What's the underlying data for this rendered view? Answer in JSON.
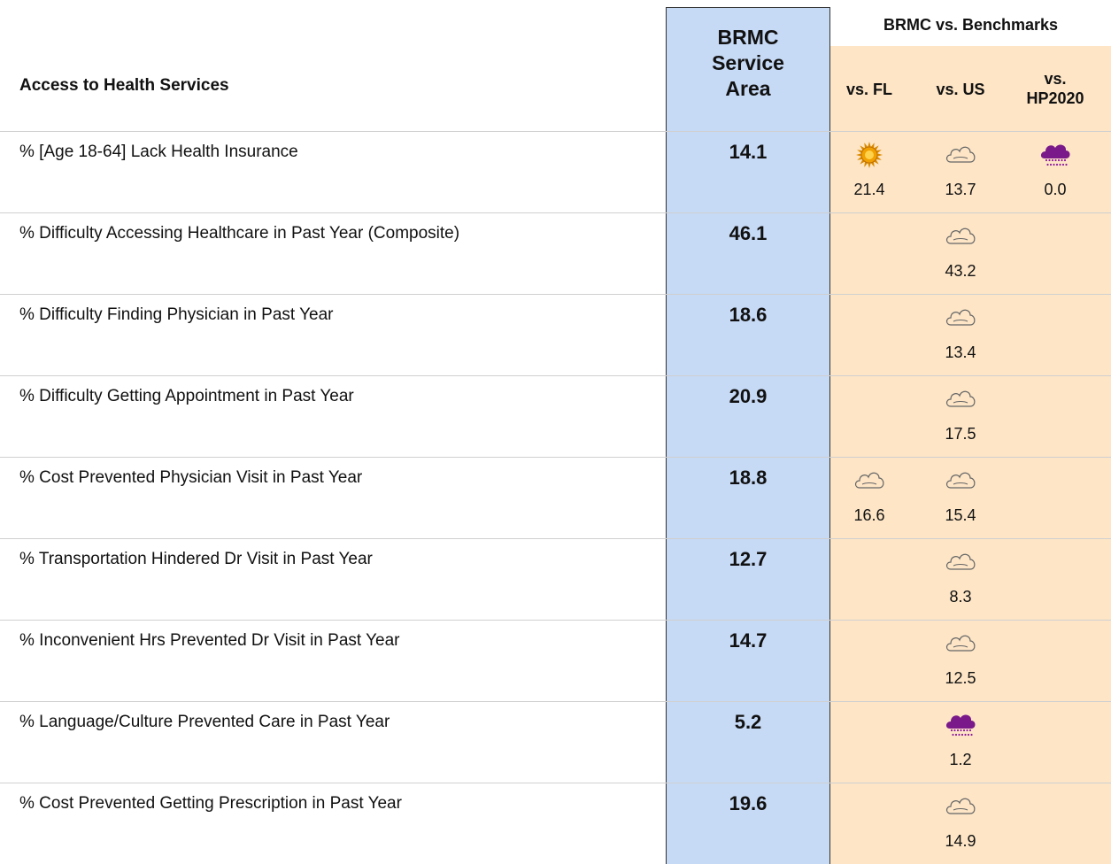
{
  "header": {
    "topic": "Access to Health Services",
    "area": "BRMC Service Area",
    "benchmarks": "BRMC vs. Benchmarks",
    "columns": [
      "vs. FL",
      "vs. US",
      "vs. HP2020"
    ]
  },
  "table": {
    "rows": [
      {
        "label": "% [Age 18-64] Lack Health Insurance",
        "value": "14.1",
        "cells": [
          {
            "icon": "sun",
            "value": "21.4"
          },
          {
            "icon": "cloud",
            "value": "13.7"
          },
          {
            "icon": "rain",
            "value": "0.0"
          }
        ]
      },
      {
        "label": "% Difficulty Accessing Healthcare in Past Year (Composite)",
        "value": "46.1",
        "cells": [
          null,
          {
            "icon": "cloud",
            "value": "43.2"
          },
          null
        ]
      },
      {
        "label": "% Difficulty Finding Physician in Past Year",
        "value": "18.6",
        "cells": [
          null,
          {
            "icon": "cloud",
            "value": "13.4"
          },
          null
        ]
      },
      {
        "label": "% Difficulty Getting Appointment in Past Year",
        "value": "20.9",
        "cells": [
          null,
          {
            "icon": "cloud",
            "value": "17.5"
          },
          null
        ]
      },
      {
        "label": "% Cost Prevented Physician Visit in Past Year",
        "value": "18.8",
        "cells": [
          {
            "icon": "cloud",
            "value": "16.6"
          },
          {
            "icon": "cloud",
            "value": "15.4"
          },
          null
        ]
      },
      {
        "label": "% Transportation Hindered Dr Visit in Past Year",
        "value": "12.7",
        "cells": [
          null,
          {
            "icon": "cloud",
            "value": "8.3"
          },
          null
        ]
      },
      {
        "label": "% Inconvenient Hrs Prevented Dr Visit in Past Year",
        "value": "14.7",
        "cells": [
          null,
          {
            "icon": "cloud",
            "value": "12.5"
          },
          null
        ]
      },
      {
        "label": "% Language/Culture Prevented Care in Past Year",
        "value": "5.2",
        "cells": [
          null,
          {
            "icon": "rain",
            "value": "1.2"
          },
          null
        ]
      },
      {
        "label": "% Cost Prevented Getting Prescription in Past Year",
        "value": "19.6",
        "cells": [
          null,
          {
            "icon": "cloud",
            "value": "14.9"
          },
          null
        ]
      }
    ]
  }
}
